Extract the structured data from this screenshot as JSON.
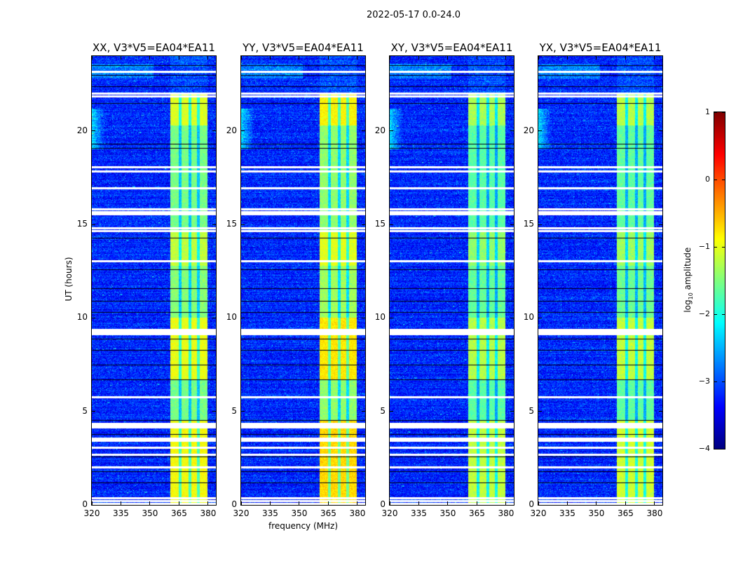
{
  "chart_data": {
    "type": "heatmap",
    "title": "2022-05-17 0.0-24.0",
    "xlabel": "frequency (MHz)",
    "ylabel": "UT (hours)",
    "xlim": [
      320,
      384
    ],
    "ylim": [
      0,
      24
    ],
    "xticks": [
      "320",
      "335",
      "350",
      "365",
      "380"
    ],
    "xtick_values": [
      320,
      335,
      350,
      365,
      380
    ],
    "yticks": [
      "0",
      "5",
      "10",
      "15",
      "20"
    ],
    "ytick_values": [
      0,
      5,
      10,
      15,
      20
    ],
    "panels": [
      {
        "title": "XX, V3*V5=EA04*EA11",
        "band_strength": 1.0
      },
      {
        "title": "YY, V3*V5=EA04*EA11",
        "band_strength": 1.15
      },
      {
        "title": "XY, V3*V5=EA04*EA11",
        "band_strength": 0.8
      },
      {
        "title": "YX, V3*V5=EA04*EA11",
        "band_strength": 0.85
      }
    ],
    "rfi_band_mhz": [
      360.5,
      379.5
    ],
    "rfi_gaps_mhz": [
      365.5,
      370.5,
      375.0
    ],
    "background_log_amp": -3.2,
    "flagged_hours_white": [
      0.1,
      0.25,
      0.4,
      2.05,
      2.75,
      3.1,
      3.5,
      3.6,
      4.2,
      4.3,
      4.4,
      5.8,
      9.2,
      9.3,
      9.4,
      13.1,
      14.7,
      14.85,
      15.6,
      15.7,
      15.85,
      17.0,
      17.9,
      18.1,
      21.9,
      22.05,
      23.2
    ],
    "flagged_hours_black": [
      1.2,
      1.8,
      2.6,
      3.8,
      4.55,
      6.7,
      7.5,
      8.3,
      8.9,
      10.3,
      10.9,
      11.6,
      12.6,
      14.3,
      19.1,
      19.3,
      21.5,
      22.4,
      23.0,
      23.5
    ],
    "colorbar": {
      "label": "log10 amplitude",
      "label_main": "log",
      "label_sub": "10",
      "label_rest": " amplitude",
      "range": [
        -4,
        1
      ],
      "ticks": [
        "1",
        "0",
        "−1",
        "−2",
        "−3",
        "−4"
      ],
      "tick_values": [
        1,
        0,
        -1,
        -2,
        -3,
        -4
      ],
      "colormap": "jet"
    }
  }
}
